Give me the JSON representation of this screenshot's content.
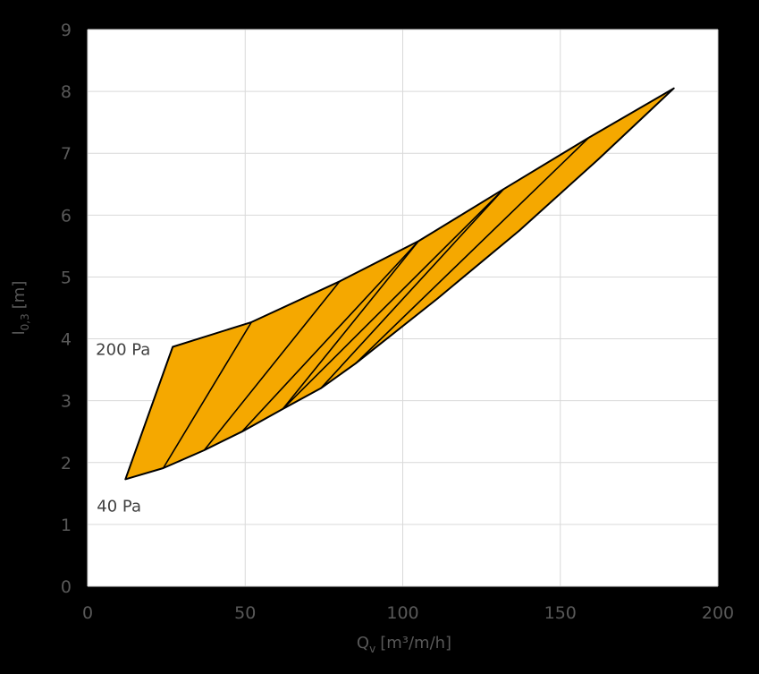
{
  "chart_data": {
    "type": "area",
    "title": "",
    "xlabel": "Q",
    "xlabel_sub": "v",
    "xlabel_unit": "[m³/m/h]",
    "ylabel": "l",
    "ylabel_sub": "0,3",
    "ylabel_unit": "[m]",
    "xlim": [
      0,
      200
    ],
    "ylim": [
      0,
      9
    ],
    "xticks": [
      0,
      50,
      100,
      150,
      200
    ],
    "yticks": [
      0,
      1,
      2,
      3,
      4,
      5,
      6,
      7,
      8,
      9
    ],
    "grid": true,
    "legend": "none",
    "fill_color": "#F5A800",
    "line_color": "#000000",
    "plot_background": "#ffffff",
    "page_background": "#000000",
    "boundary_lower": {
      "name": "40 Pa",
      "x": [
        12,
        24,
        37,
        49,
        62,
        74,
        85,
        111,
        137,
        162,
        186
      ],
      "y": [
        1.73,
        1.91,
        2.2,
        2.5,
        2.87,
        3.2,
        3.6,
        4.65,
        5.75,
        6.9,
        8.05
      ]
    },
    "boundary_upper": {
      "name": "200 Pa",
      "x": [
        27,
        52,
        80,
        105,
        132,
        159,
        186
      ],
      "y": [
        3.87,
        4.27,
        4.93,
        5.58,
        6.42,
        7.25,
        8.05
      ]
    },
    "isolines": [
      {
        "from": [
          24,
          1.91
        ],
        "to": [
          52,
          4.27
        ]
      },
      {
        "from": [
          37,
          2.2
        ],
        "to": [
          80,
          4.93
        ]
      },
      {
        "from": [
          49,
          2.5
        ],
        "to": [
          105,
          5.58
        ]
      },
      {
        "from": [
          62,
          2.87
        ],
        "to": [
          105,
          5.58
        ]
      },
      {
        "from": [
          62,
          2.87
        ],
        "to": [
          132,
          6.42
        ]
      },
      {
        "from": [
          74,
          3.2
        ],
        "to": [
          132,
          6.42
        ]
      },
      {
        "from": [
          85,
          3.6
        ],
        "to": [
          159,
          7.25
        ]
      }
    ],
    "annotations": [
      {
        "text": "200 Pa",
        "x": 27,
        "y": 3.87
      },
      {
        "text": "40 Pa",
        "x": 12,
        "y": 1.73
      }
    ]
  }
}
